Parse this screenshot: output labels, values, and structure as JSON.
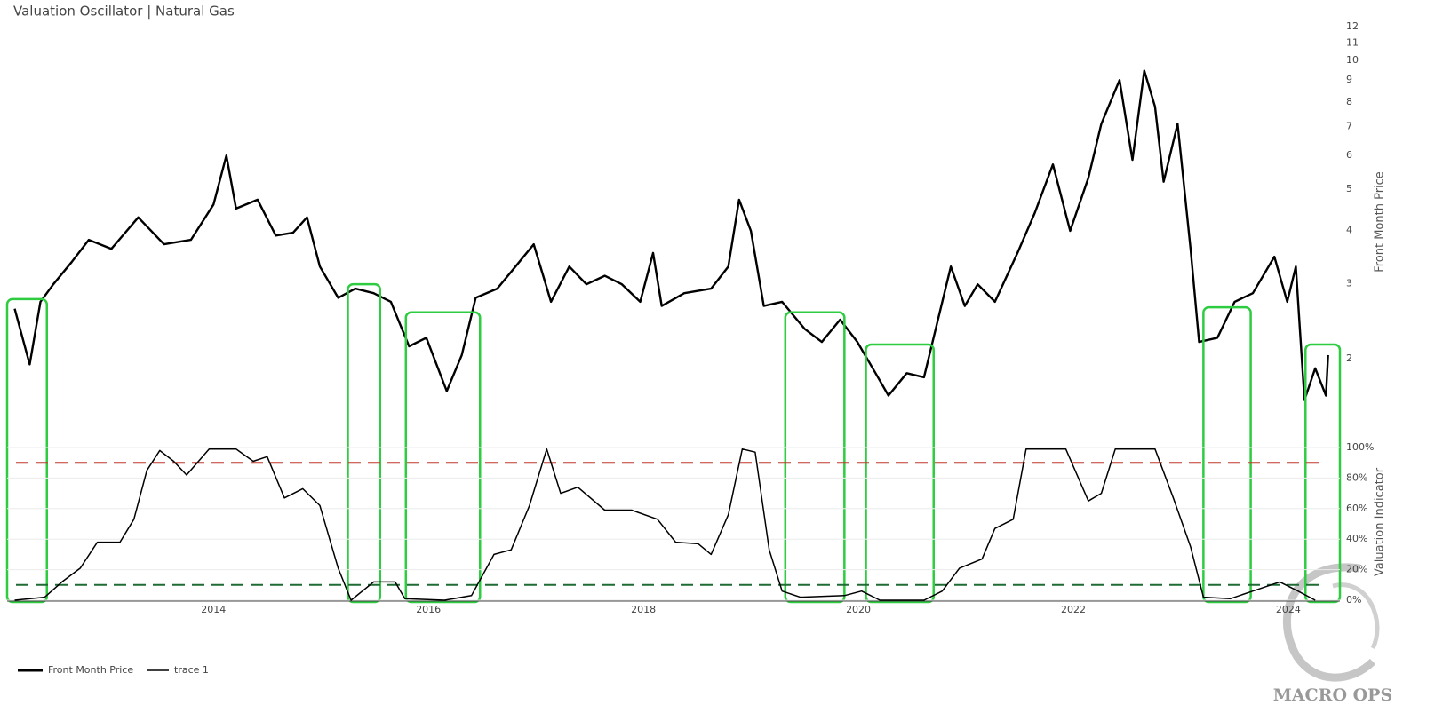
{
  "chart_data": [
    {
      "type": "line",
      "title": "Valuation Oscillator | Natural Gas",
      "y_axis_label": "Front Month Price",
      "log_scale": true,
      "xlim": [
        2012.08,
        2024.48
      ],
      "ylim": [
        1.39,
        12.6
      ],
      "yticks": [
        2,
        3,
        4,
        5,
        6,
        7,
        8,
        9,
        10,
        11,
        12
      ],
      "x": [
        2012.15,
        2012.29,
        2012.39,
        2012.51,
        2012.68,
        2012.84,
        2013.05,
        2013.3,
        2013.54,
        2013.79,
        2014.0,
        2014.12,
        2014.21,
        2014.41,
        2014.58,
        2014.74,
        2014.87,
        2014.99,
        2015.16,
        2015.32,
        2015.49,
        2015.65,
        2015.82,
        2015.98,
        2016.17,
        2016.31,
        2016.44,
        2016.64,
        2016.81,
        2016.98,
        2017.14,
        2017.31,
        2017.47,
        2017.64,
        2017.8,
        2017.97,
        2018.09,
        2018.17,
        2018.38,
        2018.63,
        2018.79,
        2018.89,
        2019.0,
        2019.12,
        2019.29,
        2019.5,
        2019.66,
        2019.83,
        2019.99,
        2020.16,
        2020.28,
        2020.45,
        2020.61,
        2020.74,
        2020.86,
        2020.99,
        2021.11,
        2021.27,
        2021.48,
        2021.64,
        2021.81,
        2021.97,
        2022.14,
        2022.26,
        2022.43,
        2022.55,
        2022.66,
        2022.76,
        2022.84,
        2022.97,
        2023.09,
        2023.17,
        2023.34,
        2023.5,
        2023.67,
        2023.87,
        2023.99,
        2024.07,
        2024.15,
        2024.25,
        2024.35,
        2024.37
      ],
      "series": [
        {
          "name": "Front Month Price",
          "color": "#000000",
          "values": [
            2.62,
            1.94,
            2.72,
            2.99,
            3.37,
            3.8,
            3.62,
            4.29,
            3.71,
            3.8,
            4.6,
            5.99,
            4.5,
            4.72,
            3.89,
            3.95,
            4.29,
            3.29,
            2.78,
            2.92,
            2.85,
            2.72,
            2.14,
            2.24,
            1.68,
            2.04,
            2.78,
            2.92,
            3.29,
            3.71,
            2.72,
            3.29,
            2.99,
            3.13,
            2.99,
            2.72,
            3.54,
            2.66,
            2.85,
            2.92,
            3.29,
            4.72,
            3.99,
            2.66,
            2.72,
            2.35,
            2.19,
            2.47,
            2.19,
            1.85,
            1.64,
            1.85,
            1.81,
            2.47,
            3.29,
            2.66,
            2.99,
            2.72,
            3.54,
            4.39,
            5.71,
            3.99,
            5.31,
            7.11,
            9.0,
            5.85,
            9.47,
            7.8,
            5.2,
            7.11,
            3.62,
            2.19,
            2.24,
            2.72,
            2.85,
            3.47,
            2.72,
            3.29,
            1.6,
            1.9,
            1.64,
            2.04
          ]
        }
      ],
      "highlights": [
        {
          "start": 2012.08,
          "end": 2012.45,
          "top": 2.76
        },
        {
          "start": 2015.25,
          "end": 2015.55,
          "top": 2.99
        },
        {
          "start": 2015.79,
          "end": 2016.48,
          "top": 2.57
        },
        {
          "start": 2019.32,
          "end": 2019.87,
          "top": 2.57
        },
        {
          "start": 2020.07,
          "end": 2020.7,
          "top": 2.16
        },
        {
          "start": 2023.21,
          "end": 2023.65,
          "top": 2.64
        },
        {
          "start": 2024.16,
          "end": 2024.48,
          "top": 2.16
        }
      ],
      "highlight_color": "#2ecc40"
    },
    {
      "type": "line",
      "y_axis_label": "Valuation Indicator",
      "grid": true,
      "xlim": [
        2012.08,
        2024.48
      ],
      "ylim": [
        0,
        100
      ],
      "xticks": [
        2014,
        2016,
        2018,
        2020,
        2022,
        2024
      ],
      "yticks": [
        {
          "value": 0,
          "label": "0%"
        },
        {
          "value": 20,
          "label": "20%"
        },
        {
          "value": 40,
          "label": "40%"
        },
        {
          "value": 60,
          "label": "60%"
        },
        {
          "value": 80,
          "label": "80%"
        },
        {
          "value": 100,
          "label": "100%"
        }
      ],
      "x": [
        2012.15,
        2012.43,
        2012.59,
        2012.76,
        2012.92,
        2013.13,
        2013.26,
        2013.38,
        2013.5,
        2013.63,
        2013.75,
        2013.96,
        2014.21,
        2014.37,
        2014.5,
        2014.66,
        2014.83,
        2014.99,
        2015.16,
        2015.28,
        2015.49,
        2015.69,
        2015.78,
        2016.15,
        2016.4,
        2016.61,
        2016.77,
        2016.94,
        2017.1,
        2017.23,
        2017.39,
        2017.64,
        2017.89,
        2018.13,
        2018.3,
        2018.51,
        2018.63,
        2018.79,
        2018.92,
        2019.04,
        2019.17,
        2019.29,
        2019.46,
        2019.87,
        2020.03,
        2020.2,
        2020.61,
        2020.78,
        2020.94,
        2021.15,
        2021.27,
        2021.44,
        2021.56,
        2021.93,
        2022.14,
        2022.26,
        2022.39,
        2022.76,
        2022.93,
        2023.09,
        2023.21,
        2023.46,
        2023.67,
        2023.92,
        2024.09,
        2024.25
      ],
      "series": [
        {
          "name": "trace 1",
          "color": "#000000",
          "values": [
            0,
            2,
            12,
            21,
            38,
            38,
            53,
            85,
            98,
            91,
            82,
            99,
            99,
            91,
            94,
            67,
            73,
            62,
            21,
            0,
            12,
            12,
            1,
            0,
            3,
            30,
            33,
            62,
            99,
            70,
            74,
            59,
            59,
            53,
            38,
            37,
            30,
            56,
            99,
            97,
            33,
            6,
            2,
            3,
            6,
            0,
            0,
            6,
            21,
            27,
            47,
            53,
            99,
            99,
            65,
            70,
            99,
            99,
            67,
            35,
            2,
            1,
            6,
            12,
            6,
            0
          ]
        }
      ],
      "thresholds": [
        {
          "value": 90,
          "color": "#c0392b"
        },
        {
          "value": 10,
          "color": "#1e6b34"
        }
      ]
    }
  ],
  "watermark": "MACRO OPS"
}
